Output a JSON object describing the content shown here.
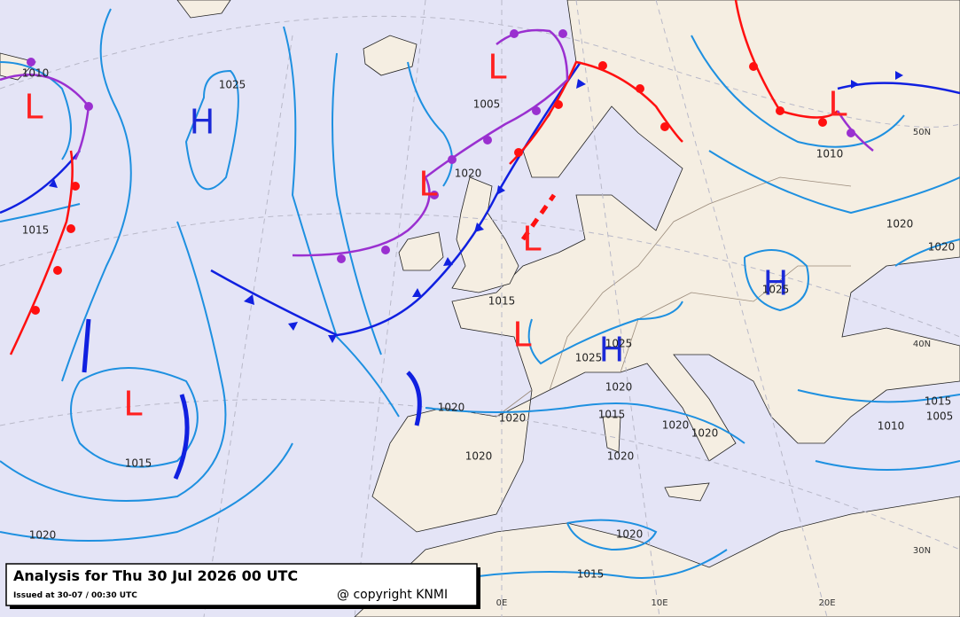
{
  "caption": {
    "title": "Analysis for Thu 30 Jul 2026 00 UTC",
    "issued": "Issued at 30-07 / 00:30 UTC",
    "copyright": "@ copyright KNMI"
  },
  "pressure_centers": [
    "L",
    "H",
    "L",
    "L",
    "L",
    "H",
    "L",
    "H",
    "L",
    "L"
  ],
  "isobar_labels": [
    "1010",
    "1025",
    "1005",
    "1020",
    "1015",
    "1015",
    "1025",
    "1025",
    "1020",
    "1020",
    "1020",
    "1015",
    "1020",
    "1020",
    "1020",
    "1015",
    "1020",
    "1020",
    "1015",
    "1010",
    "1020",
    "1020",
    "1025",
    "1015",
    "1005",
    "1010",
    "1020"
  ],
  "grid_labels": [
    "50N",
    "40N",
    "30N",
    "0E",
    "10E",
    "20E"
  ]
}
